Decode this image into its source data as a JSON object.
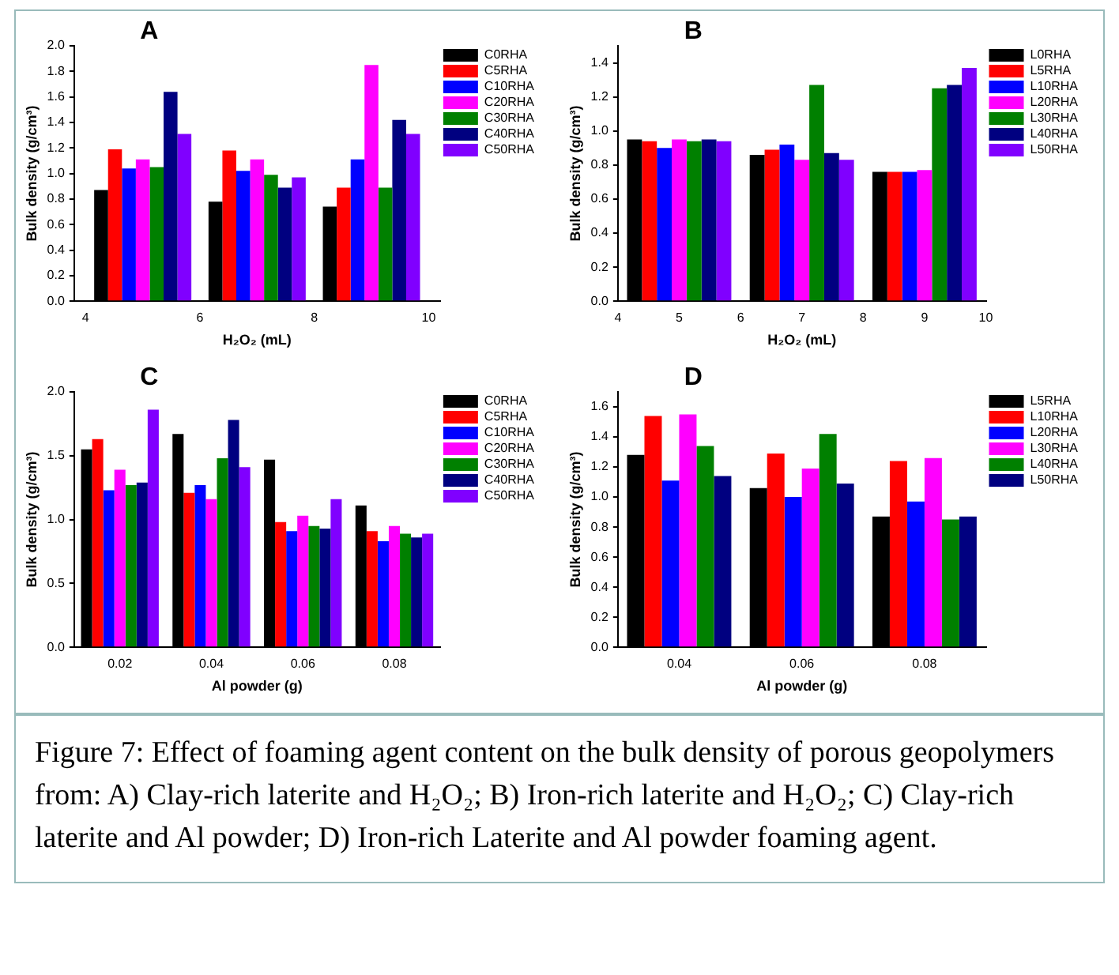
{
  "chart_data": [
    {
      "type": "bar",
      "title": "A",
      "xlabel": "H₂O₂ (mL)",
      "ylabel": "Bulk density (g/cm³)",
      "x": [
        5,
        7,
        9
      ],
      "xlim": [
        3.8,
        10.2
      ],
      "xticks": [
        4,
        6,
        8,
        10
      ],
      "ylim": [
        0,
        2.0
      ],
      "yticks": [
        {
          "value": 0,
          "label": "0.0"
        },
        0.2,
        0.4,
        0.6,
        0.8,
        {
          "value": 1,
          "label": "1.0"
        },
        1.2,
        1.4,
        1.6,
        1.8,
        {
          "value": 2,
          "label": "2.0"
        }
      ],
      "grid": false,
      "legend": "top right",
      "series": [
        {
          "name": "C0RHA",
          "color": "#000000",
          "values": [
            0.87,
            0.78,
            0.74
          ]
        },
        {
          "name": "C5RHA",
          "color": "#ff0000",
          "values": [
            1.19,
            1.18,
            0.89
          ]
        },
        {
          "name": "C10RHA",
          "color": "#0000ff",
          "values": [
            1.04,
            1.02,
            1.11
          ]
        },
        {
          "name": "C20RHA",
          "color": "#ff00ff",
          "values": [
            1.11,
            1.11,
            1.85
          ]
        },
        {
          "name": "C30RHA",
          "color": "#008000",
          "values": [
            1.05,
            0.99,
            0.89
          ]
        },
        {
          "name": "C40RHA",
          "color": "#000080",
          "values": [
            1.64,
            0.89,
            1.42
          ]
        },
        {
          "name": "C50RHA",
          "color": "#8000ff",
          "values": [
            1.31,
            0.97,
            1.31
          ]
        }
      ]
    },
    {
      "type": "bar",
      "title": "B",
      "xlabel": "H₂O₂ (mL)",
      "ylabel": "Bulk density (g/cm³)",
      "x": [
        5,
        7,
        9
      ],
      "xlim": [
        4,
        10
      ],
      "xticks": [
        4,
        5,
        6,
        7,
        8,
        9,
        10
      ],
      "ylim": [
        0,
        1.5
      ],
      "yticks": [
        {
          "value": 0,
          "label": "0.0"
        },
        0.2,
        0.4,
        0.6,
        0.8,
        {
          "value": 1,
          "label": "1.0"
        },
        1.2,
        1.4
      ],
      "grid": false,
      "legend": "top right",
      "series": [
        {
          "name": "L0RHA",
          "color": "#000000",
          "values": [
            0.95,
            0.86,
            0.76
          ]
        },
        {
          "name": "L5RHA",
          "color": "#ff0000",
          "values": [
            0.94,
            0.89,
            0.76
          ]
        },
        {
          "name": "L10RHA",
          "color": "#0000ff",
          "values": [
            0.9,
            0.92,
            0.76
          ]
        },
        {
          "name": "L20RHA",
          "color": "#ff00ff",
          "values": [
            0.95,
            0.83,
            0.77
          ]
        },
        {
          "name": "L30RHA",
          "color": "#008000",
          "values": [
            0.94,
            1.27,
            1.25
          ]
        },
        {
          "name": "L40RHA",
          "color": "#000080",
          "values": [
            0.95,
            0.87,
            1.27
          ]
        },
        {
          "name": "L50RHA",
          "color": "#8000ff",
          "values": [
            0.94,
            0.83,
            1.37
          ]
        }
      ]
    },
    {
      "type": "bar",
      "title": "C",
      "xlabel": "Al powder (g)",
      "ylabel": "Bulk density (g/cm³)",
      "categories": [
        "0.02",
        "0.04",
        "0.06",
        "0.08"
      ],
      "ylim": [
        0,
        2.0
      ],
      "yticks": [
        {
          "value": 0,
          "label": "0.0"
        },
        0.5,
        {
          "value": 1,
          "label": "1.0"
        },
        1.5,
        {
          "value": 2,
          "label": "2.0"
        }
      ],
      "grid": false,
      "legend": "top right",
      "series": [
        {
          "name": "C0RHA",
          "color": "#000000",
          "values": [
            1.55,
            1.67,
            1.47,
            1.11
          ]
        },
        {
          "name": "C5RHA",
          "color": "#ff0000",
          "values": [
            1.63,
            1.21,
            0.98,
            0.91
          ]
        },
        {
          "name": "C10RHA",
          "color": "#0000ff",
          "values": [
            1.23,
            1.27,
            0.91,
            0.83
          ]
        },
        {
          "name": "C20RHA",
          "color": "#ff00ff",
          "values": [
            1.39,
            1.16,
            1.03,
            0.95
          ]
        },
        {
          "name": "C30RHA",
          "color": "#008000",
          "values": [
            1.27,
            1.48,
            0.95,
            0.89
          ]
        },
        {
          "name": "C40RHA",
          "color": "#000080",
          "values": [
            1.29,
            1.78,
            0.93,
            0.86
          ]
        },
        {
          "name": "C50RHA",
          "color": "#8000ff",
          "values": [
            1.86,
            1.41,
            1.16,
            0.89
          ]
        }
      ]
    },
    {
      "type": "bar",
      "title": "D",
      "xlabel": "Al powder (g)",
      "ylabel": "Bulk density (g/cm³)",
      "categories": [
        "0.04",
        "0.06",
        "0.08"
      ],
      "ylim": [
        0,
        1.7
      ],
      "yticks": [
        {
          "value": 0,
          "label": "0.0"
        },
        0.2,
        0.4,
        0.6,
        0.8,
        {
          "value": 1,
          "label": "1.0"
        },
        1.2,
        1.4,
        1.6
      ],
      "grid": false,
      "legend": "top right",
      "series": [
        {
          "name": "L5RHA",
          "color": "#000000",
          "values": [
            1.28,
            1.06,
            0.87
          ]
        },
        {
          "name": "L10RHA",
          "color": "#ff0000",
          "values": [
            1.54,
            1.29,
            1.24
          ]
        },
        {
          "name": "L20RHA",
          "color": "#0000ff",
          "values": [
            1.11,
            1.0,
            0.97
          ]
        },
        {
          "name": "L30RHA",
          "color": "#ff00ff",
          "values": [
            1.55,
            1.19,
            1.26
          ]
        },
        {
          "name": "L40RHA",
          "color": "#008000",
          "values": [
            1.34,
            1.42,
            0.85
          ]
        },
        {
          "name": "L50RHA",
          "color": "#000080",
          "values": [
            1.14,
            1.09,
            0.87
          ]
        }
      ],
      "annotations": [
        "Figure 7: Effect of foaming agent content on the bulk density of porous geopolymers from: A) Clay-rich laterite and H₂O₂; B) Iron-rich laterite and H₂O₂; C) Clay-rich laterite and Al powder; D) Iron-rich Laterite and Al powder foaming agent."
      ]
    }
  ]
}
